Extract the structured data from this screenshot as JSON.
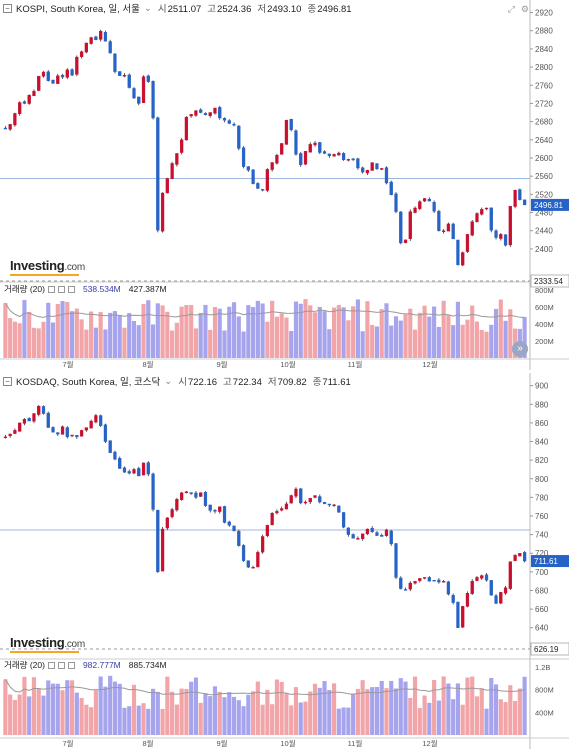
{
  "kospi": {
    "title": "KOSPI, South Korea, 일, 서울",
    "ohlc": [
      {
        "k": "시",
        "v": "2511.07"
      },
      {
        "k": "고",
        "v": "2524.36"
      },
      {
        "k": "저",
        "v": "2493.10"
      },
      {
        "k": "종",
        "v": "2496.81"
      }
    ],
    "volume_header": {
      "label": "거래량 (20)",
      "value1": "538.534M",
      "value2": "427.387M"
    },
    "logo": "Investing",
    "logo_suffix": ".com",
    "price_labels": {
      "last": "2496.81",
      "low": "2333.54"
    }
  },
  "kosdaq": {
    "title": "KOSDAQ, South Korea, 일, 코스닥",
    "ohlc": [
      {
        "k": "시",
        "v": "722.16"
      },
      {
        "k": "고",
        "v": "722.34"
      },
      {
        "k": "저",
        "v": "709.82"
      },
      {
        "k": "종",
        "v": "711.61"
      }
    ],
    "volume_header": {
      "label": "거래량 (20)",
      "value1": "982.777M",
      "value2": "885.734M"
    },
    "logo": "Investing",
    "logo_suffix": ".com",
    "price_labels": {
      "last": "711.61",
      "low": "626.19"
    }
  },
  "colors": {
    "up": "#c8102e",
    "down": "#2762c6",
    "vol_up": "#f2a5a8",
    "vol_down": "#a7a4ee",
    "ma": "#999999"
  },
  "chart_data": [
    {
      "type": "candlestick",
      "title": "KOSPI, South Korea, 일, 서울",
      "x_tick_labels": [
        "7월",
        "8월",
        "9월",
        "10월",
        "11월",
        "12월"
      ],
      "y_ticks": [
        2400,
        2440,
        2480,
        2520,
        2560,
        2600,
        2640,
        2680,
        2720,
        2760,
        2800,
        2840,
        2880,
        2920
      ],
      "ylim": [
        2325,
        2930
      ],
      "reference_line": 2555,
      "last_close": 2496.81,
      "close": [
        2665,
        2674,
        2698,
        2722,
        2720,
        2738,
        2747,
        2780,
        2789,
        2770,
        2764,
        2781,
        2778,
        2794,
        2782,
        2822,
        2834,
        2853,
        2865,
        2860,
        2879,
        2857,
        2831,
        2790,
        2781,
        2782,
        2755,
        2732,
        2720,
        2779,
        2768,
        2688,
        2441,
        2523,
        2555,
        2588,
        2610,
        2640,
        2690,
        2696,
        2704,
        2700,
        2695,
        2700,
        2710,
        2688,
        2683,
        2676,
        2672,
        2621,
        2581,
        2573,
        2543,
        2533,
        2530,
        2575,
        2590,
        2606,
        2632,
        2683,
        2662,
        2608,
        2585,
        2615,
        2630,
        2633,
        2612,
        2610,
        2605,
        2608,
        2611,
        2596,
        2597,
        2598,
        2578,
        2569,
        2573,
        2590,
        2576,
        2577,
        2545,
        2519,
        2482,
        2413,
        2420,
        2482,
        2490,
        2504,
        2511,
        2505,
        2483,
        2440,
        2440,
        2455,
        2422,
        2365,
        2392,
        2432,
        2460,
        2478,
        2487,
        2490,
        2441,
        2425,
        2432,
        2408,
        2494,
        2529,
        2508,
        2496.81
      ]
    },
    {
      "type": "candlestick",
      "title": "KOSDAQ, South Korea, 일, 코스닥",
      "x_tick_labels": [
        "7월",
        "8월",
        "9월",
        "10월",
        "11월",
        "12월"
      ],
      "y_ticks": [
        620,
        640,
        660,
        680,
        700,
        720,
        740,
        760,
        780,
        800,
        820,
        840,
        860,
        880,
        900
      ],
      "ylim": [
        615,
        905
      ],
      "reference_line": 745,
      "last_close": 711.61,
      "close": [
        845,
        848,
        852,
        860,
        864,
        862,
        870,
        878,
        870,
        855,
        850,
        848,
        856,
        845,
        847,
        845,
        852,
        855,
        862,
        868,
        857,
        840,
        828,
        821,
        811,
        807,
        806,
        810,
        803,
        817,
        805,
        767,
        700,
        746,
        758,
        767,
        778,
        785,
        786,
        784,
        780,
        785,
        771,
        766,
        765,
        770,
        753,
        750,
        744,
        728,
        712,
        705,
        705,
        721,
        738,
        750,
        763,
        765,
        768,
        773,
        782,
        789,
        774,
        775,
        779,
        782,
        775,
        773,
        772,
        772,
        764,
        748,
        740,
        736,
        736,
        741,
        746,
        743,
        739,
        738,
        745,
        730,
        694,
        682,
        681,
        688,
        690,
        693,
        694,
        690,
        691,
        689,
        690,
        676,
        667,
        640,
        663,
        677,
        690,
        694,
        696,
        691,
        675,
        666,
        678,
        683,
        711,
        718,
        720,
        711.61
      ]
    }
  ]
}
